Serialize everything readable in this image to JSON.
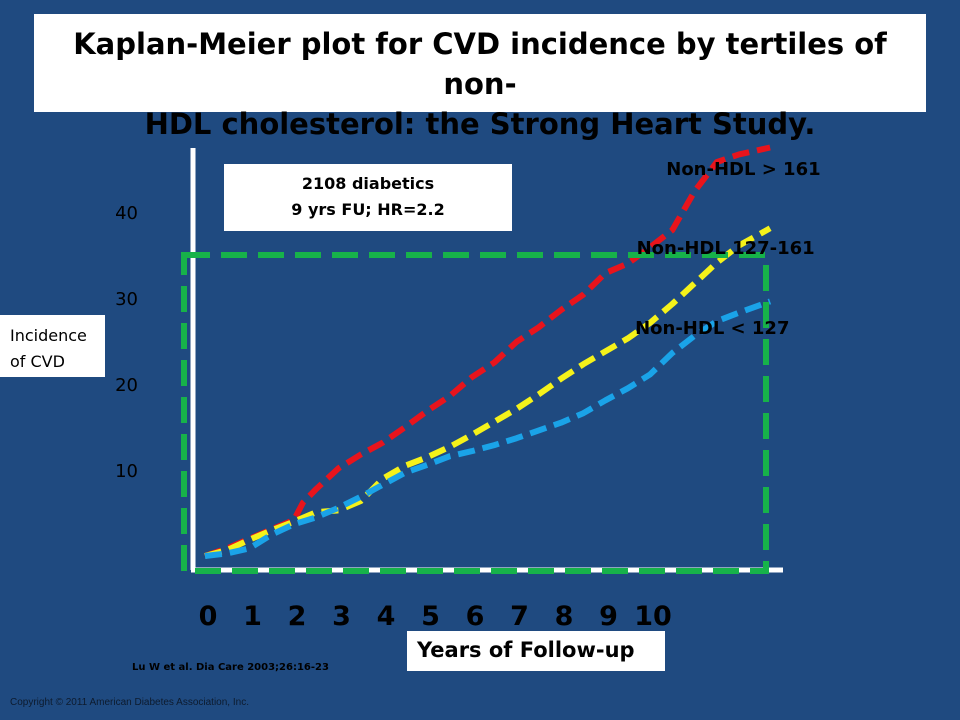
{
  "title_line1": "Kaplan-Meier plot for CVD incidence by tertiles of non-",
  "title_line2": "HDL cholesterol: the Strong Heart Study.",
  "annotation_line1": "2108 diabetics",
  "annotation_line2": "9 yrs FU; HR=2.2",
  "citation": "Lu W et al. Dia Care 2003;26:16-23",
  "copyright": "Copyright © 2011 American Diabetes Association, Inc.",
  "colors": {
    "background": "#1f4a80",
    "axis": "#ffffff",
    "highlight_box": "#17b24a",
    "red": "#e8141c",
    "yellow": "#f5f21a",
    "blue": "#1aa3e8"
  },
  "chart_data": {
    "type": "line",
    "title": "Kaplan-Meier plot for CVD incidence by tertiles of non-HDL cholesterol: the Strong Heart Study.",
    "xlabel": "Years of Follow-up",
    "ylabel_line1": "Incidence",
    "ylabel_line2": "of CVD",
    "xlim": [
      0,
      13.2
    ],
    "ylim": [
      0,
      48
    ],
    "x_ticks": [
      0,
      1,
      2,
      3,
      4,
      5,
      6,
      7,
      8,
      9,
      10
    ],
    "x_tick_labels": [
      "0",
      "1",
      "2",
      "3",
      "4",
      "5",
      "6",
      "7",
      "8",
      "9",
      "10"
    ],
    "y_ticks": [
      10,
      20,
      30,
      40
    ],
    "y_tick_labels": [
      "10",
      "20",
      "30",
      "40"
    ],
    "grid": false,
    "series": [
      {
        "name": "Non-HDL > 161",
        "color": "#e8141c",
        "x": [
          0,
          0.5,
          1,
          1.5,
          2,
          2.2,
          2.5,
          3,
          3.5,
          4,
          4.5,
          5,
          5.5,
          6,
          6.5,
          7,
          7.5,
          8,
          8.5,
          9,
          9.5,
          10,
          10.5,
          11,
          11.5,
          12,
          12.7
        ],
        "values": [
          0,
          0.9,
          2,
          3.1,
          4.2,
          6.2,
          7.8,
          10.2,
          11.8,
          13.2,
          15,
          16.9,
          18.6,
          20.8,
          22.5,
          24.9,
          26.6,
          28.6,
          30.4,
          32.9,
          34,
          35.9,
          37.9,
          42.4,
          45.8,
          46.7,
          47.5
        ],
        "label_x": 12.1,
        "label_y": 44.3
      },
      {
        "name": "Non-HDL 127-161",
        "color": "#f5f21a",
        "x": [
          0,
          0.5,
          1,
          1.5,
          2,
          2.5,
          3,
          3.5,
          4,
          4.5,
          5,
          5.5,
          6,
          6.5,
          7,
          7.5,
          8,
          8.5,
          9,
          9.5,
          10,
          10.5,
          11,
          11.5,
          12,
          12.7
        ],
        "values": [
          0,
          0.7,
          1.9,
          3,
          4,
          5.1,
          5.3,
          6.4,
          9,
          10.5,
          11.5,
          12.7,
          14.1,
          15.6,
          17.1,
          18.8,
          20.6,
          22.3,
          23.8,
          25.3,
          27.1,
          29.3,
          31.7,
          34.1,
          36.1,
          38.1
        ],
        "label_x": 11.7,
        "label_y": 35.1
      },
      {
        "name": "Non-HDL < 127",
        "color": "#1aa3e8",
        "x": [
          0,
          0.5,
          1,
          1.5,
          2,
          2.5,
          3,
          3.5,
          4,
          4.5,
          5,
          5.5,
          6,
          6.5,
          7,
          7.5,
          8,
          8.5,
          9,
          9.5,
          10,
          10.5,
          11,
          11.5,
          12,
          12.7
        ],
        "values": [
          0,
          0.3,
          0.9,
          2.5,
          3.7,
          4.5,
          5.6,
          6.9,
          8.3,
          9.7,
          10.6,
          11.6,
          12.2,
          12.9,
          13.7,
          14.6,
          15.5,
          16.6,
          18.1,
          19.5,
          21.1,
          23.6,
          25.6,
          27.3,
          28.3,
          29.6
        ],
        "label_x": 11.4,
        "label_y": 25.8
      }
    ]
  }
}
